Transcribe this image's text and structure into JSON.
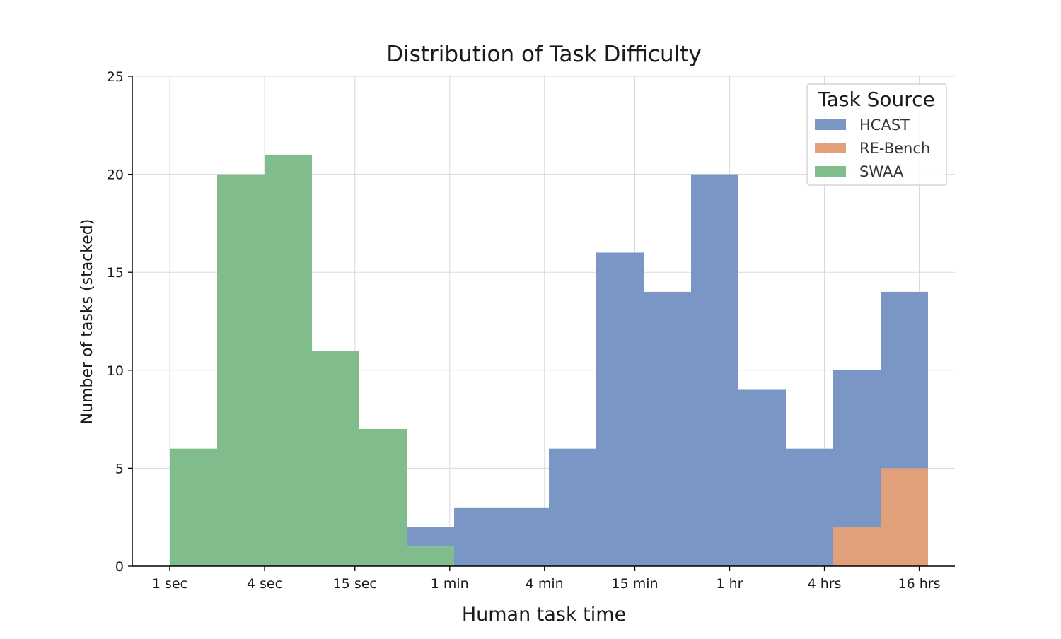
{
  "chart_data": {
    "type": "bar",
    "stacked": true,
    "title": "Distribution of Task Difficulty",
    "xlabel": "Human task time",
    "ylabel": "Number of tasks (stacked)",
    "x_scale": "log2",
    "x_bin_edges_seconds": [
      1,
      2,
      4,
      8,
      16,
      32,
      64,
      128,
      256,
      512,
      1024,
      2048,
      4096,
      8192,
      16384,
      32768,
      65536
    ],
    "x_ticks_seconds": [
      1,
      4,
      15,
      60,
      240,
      900,
      3600,
      14400,
      57600
    ],
    "x_tick_labels": [
      "1 sec",
      "4 sec",
      "15 sec",
      "1 min",
      "4 min",
      "15 min",
      "1 hr",
      "4 hrs",
      "16 hrs"
    ],
    "ylim": [
      0,
      25
    ],
    "y_ticks": [
      0,
      5,
      10,
      15,
      20,
      25
    ],
    "grid": true,
    "legend": {
      "title": "Task Source",
      "placement": "top-right"
    },
    "series": [
      {
        "name": "RE-Bench",
        "color": "#e1a07a",
        "values": [
          0,
          0,
          0,
          0,
          0,
          0,
          0,
          0,
          0,
          0,
          0,
          0,
          0,
          0,
          2,
          5
        ]
      },
      {
        "name": "SWAA",
        "color": "#81bc8c",
        "values": [
          6,
          20,
          21,
          11,
          7,
          1,
          0,
          0,
          0,
          0,
          0,
          0,
          0,
          0,
          0,
          0
        ]
      },
      {
        "name": "HCAST",
        "color": "#7a96c4",
        "values": [
          0,
          0,
          0,
          0,
          0,
          1,
          3,
          3,
          6,
          16,
          14,
          20,
          9,
          6,
          8,
          9
        ]
      }
    ],
    "legend_order": [
      "HCAST",
      "RE-Bench",
      "SWAA"
    ]
  }
}
